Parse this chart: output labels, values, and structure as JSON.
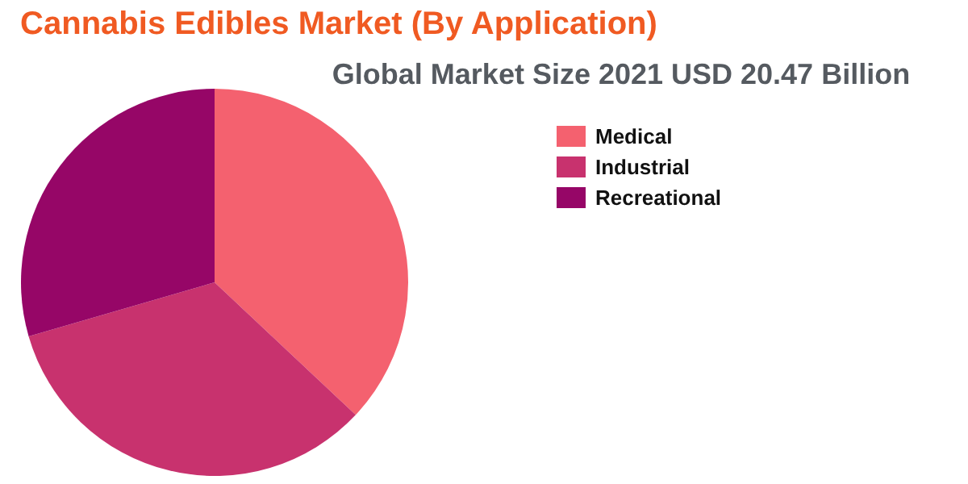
{
  "chart_data": {
    "type": "pie",
    "title": "Cannabis Edibles Market (By Application)",
    "subtitle": "Global Market Size 2021 USD 20.47 Billion",
    "categories": [
      "Medical",
      "Industrial",
      "Recreational"
    ],
    "values": [
      37,
      33.5,
      29.5
    ],
    "colors": [
      "#f4616f",
      "#c8326e",
      "#960667"
    ],
    "legend": "top right"
  }
}
